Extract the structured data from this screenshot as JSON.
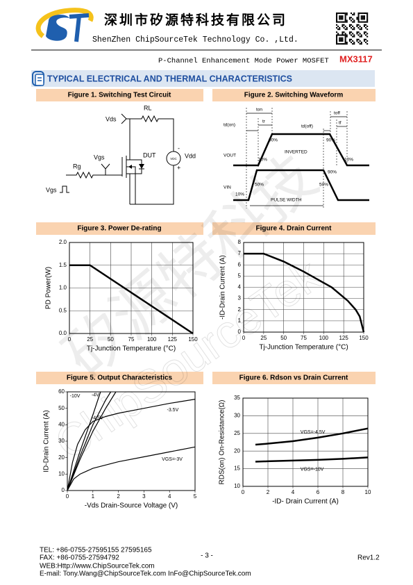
{
  "header": {
    "company_cn": "深圳市矽源特科技有限公司",
    "company_en": "ShenZhen ChipSourceTek Technology Co. ,Ltd.",
    "product_desc": "P-Channel Enhancement Mode Power MOSFET",
    "part_number": "MX3117"
  },
  "section_title": "TYPICAL ELECTRICAL AND THERMAL CHARACTERISTICS",
  "figure1": {
    "caption": "Figure 1. Switching Test Circuit",
    "vds": "Vds",
    "rl": "RL",
    "dut": "DUT",
    "vgs": "Vgs",
    "rg": "Rg",
    "vdd": "Vdd",
    "vdc": "VDC",
    "vgs_pulse": "Vgs",
    "minus": "-",
    "plus": "+"
  },
  "figure2": {
    "caption": "Figure 2. Switching Waveform",
    "ton": "ton",
    "tr": "tr",
    "td_on": "td(on)",
    "td_off": "td(off)",
    "toff": "toff",
    "tf": "tf",
    "vout": "VOUT",
    "vin": "VIN",
    "inverted": "INVERTED",
    "pulse_width": "PULSE WIDTH",
    "p90a": "90%",
    "p10a": "10%",
    "p90b": "90%",
    "p10b": "10%",
    "p90c": "90%",
    "p50a": "50%",
    "p50b": "50%",
    "p10c": "10%"
  },
  "chart_data": [
    {
      "type": "line",
      "title": "Figure 3. Power De-rating",
      "xlabel": "Tj-Junction Temperature (°C)",
      "ylabel": "PD Power(W)",
      "xlim": [
        0,
        150
      ],
      "xticks": [
        0,
        25,
        50,
        75,
        100,
        125,
        150
      ],
      "ylim": [
        0,
        2
      ],
      "yticks": [
        {
          "value": 0,
          "label": "0.0"
        },
        0.5,
        {
          "value": 1,
          "label": "1.0"
        },
        1.5,
        {
          "value": 2,
          "label": "2.0"
        }
      ],
      "grid": true,
      "series": [
        {
          "color": "#000000",
          "x": [
            0,
            25,
            150
          ],
          "values": [
            1.5,
            1.5,
            0
          ]
        }
      ]
    },
    {
      "type": "line",
      "title": "Figure 4. Drain Current",
      "xlabel": "Tj-Junction Temperature (°C)",
      "ylabel": "-ID-Drain Current (A)",
      "xlim": [
        0,
        150
      ],
      "xticks": [
        0,
        25,
        50,
        75,
        100,
        125,
        150
      ],
      "ylim": [
        0,
        8
      ],
      "yticks": [
        0,
        1,
        2,
        3,
        4,
        5,
        6,
        7,
        8
      ],
      "grid": true,
      "series": [
        {
          "color": "#000000",
          "x": [
            0,
            25,
            50,
            75,
            100,
            110,
            120,
            130,
            140,
            145,
            150
          ],
          "values": [
            7,
            7,
            6.3,
            5.4,
            4.4,
            4.0,
            3.4,
            2.8,
            2.0,
            1.4,
            0
          ]
        }
      ]
    },
    {
      "type": "line",
      "title": "Figure 5. Output Characteristics",
      "xlabel": "-Vds Drain-Source Voltage (V)",
      "ylabel": "ID-Drain Current (A)",
      "xlim": [
        0,
        5
      ],
      "xticks": [
        0,
        1,
        2,
        3,
        4,
        5
      ],
      "ylim": [
        0,
        60
      ],
      "yticks": [
        0,
        10,
        20,
        30,
        40,
        50,
        60
      ],
      "grid": false,
      "series": [
        {
          "name": "-10V",
          "color": "#000000",
          "x": [
            0,
            0.5,
            1,
            1.3
          ],
          "values": [
            0,
            24,
            46,
            60
          ]
        },
        {
          "name": "-4V",
          "color": "#000000",
          "x": [
            0,
            0.5,
            1,
            1.5,
            1.9
          ],
          "values": [
            0,
            19,
            36,
            50,
            60
          ]
        },
        {
          "name": "-4.5V",
          "color": "#000000",
          "x": [
            0,
            0.5,
            1,
            1.5,
            1.7
          ],
          "values": [
            0,
            21,
            40,
            55,
            60
          ]
        },
        {
          "name": "-3.5V",
          "color": "#000000",
          "x": [
            0,
            0.2,
            0.4,
            0.7,
            1,
            1.5,
            2,
            3,
            4,
            5
          ],
          "values": [
            0,
            17,
            28,
            37,
            42,
            45,
            47,
            50,
            53,
            55.5
          ]
        },
        {
          "name": "VGS=-3V",
          "color": "#000000",
          "x": [
            0,
            0.25,
            0.5,
            1,
            2,
            3,
            4,
            5
          ],
          "values": [
            0,
            7,
            10,
            13.5,
            17.5,
            20.5,
            23.5,
            26.5
          ]
        }
      ]
    },
    {
      "type": "line",
      "title": "Figure 6. Rdson vs Drain Current",
      "xlabel": "-ID- Drain Current (A)",
      "ylabel": "RDS(on) On-Resistance(Ω)",
      "xlim": [
        0,
        10
      ],
      "xticks": [
        0,
        2,
        4,
        6,
        8,
        10
      ],
      "ylim": [
        10,
        35
      ],
      "yticks": [
        10,
        15,
        20,
        25,
        30,
        35
      ],
      "grid": true,
      "series": [
        {
          "name": "VGS=-4.5V",
          "color": "#000000",
          "x": [
            1,
            2,
            4,
            6,
            8,
            10
          ],
          "values": [
            21.8,
            22.1,
            22.8,
            23.8,
            25,
            26.4
          ]
        },
        {
          "name": "VGS=-10V",
          "color": "#000000",
          "x": [
            1,
            2,
            4,
            6,
            8,
            10
          ],
          "values": [
            17,
            17.1,
            17.3,
            17.5,
            17.8,
            18.2
          ]
        }
      ]
    }
  ],
  "watermark": {
    "cn": "矽源特科技",
    "en": "ChipSourceTek"
  },
  "footer": {
    "tel": "TEL: +86-0755-27595155 27595165",
    "fax": "FAX: +86-0755-27594792",
    "web": "WEB:Http://www.ChipSourceTek.com",
    "email": "E-mail: Tony.Wang@ChipSourceTek.com InFo@ChipSourceTek.com",
    "page": "- 3 -",
    "rev": "Rev1.2"
  }
}
